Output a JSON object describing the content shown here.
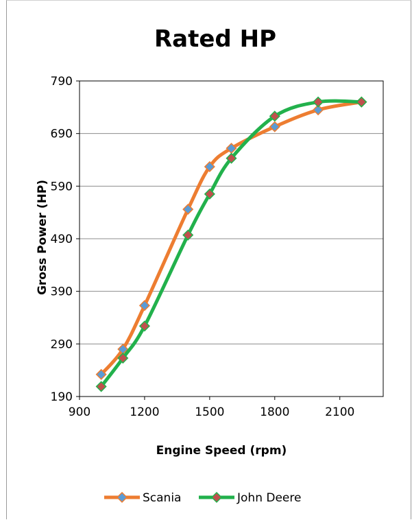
{
  "chart_data": {
    "type": "line",
    "title": "Rated HP",
    "xlabel": "Engine Speed (rpm)",
    "ylabel": "Gross Power (HP)",
    "xlim": [
      900,
      2300
    ],
    "ylim": [
      190,
      790
    ],
    "xticks": [
      900,
      1200,
      1500,
      1800,
      2100
    ],
    "yticks": [
      190,
      290,
      390,
      490,
      590,
      690,
      790
    ],
    "grid": "horizontal",
    "legend_position": "bottom",
    "series": [
      {
        "name": "Scania",
        "color": "#ED7D31",
        "marker": "diamond",
        "marker_fill": "#5B9BD5",
        "x": [
          1000,
          1100,
          1200,
          1400,
          1500,
          1600,
          1800,
          2000,
          2200
        ],
        "y": [
          232,
          280,
          363,
          546,
          627,
          662,
          703,
          735,
          750
        ]
      },
      {
        "name": "John Deere",
        "color": "#22B14C",
        "marker": "diamond",
        "marker_fill": "#C0504D",
        "x": [
          1000,
          1100,
          1200,
          1400,
          1500,
          1600,
          1800,
          2000,
          2200
        ],
        "y": [
          209,
          263,
          324,
          497,
          575,
          643,
          723,
          750,
          750
        ]
      }
    ]
  }
}
